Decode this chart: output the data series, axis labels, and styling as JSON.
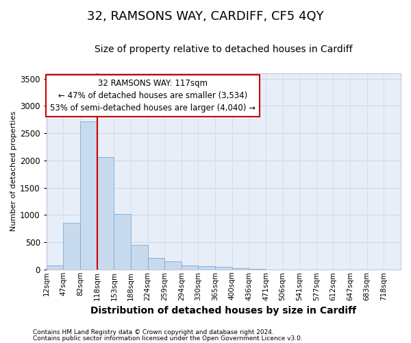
{
  "title": "32, RAMSONS WAY, CARDIFF, CF5 4QY",
  "subtitle": "Size of property relative to detached houses in Cardiff",
  "xlabel": "Distribution of detached houses by size in Cardiff",
  "ylabel": "Number of detached properties",
  "footnote1": "Contains HM Land Registry data © Crown copyright and database right 2024.",
  "footnote2": "Contains public sector information licensed under the Open Government Licence v3.0.",
  "annotation_line1": "32 RAMSONS WAY: 117sqm",
  "annotation_line2": "← 47% of detached houses are smaller (3,534)",
  "annotation_line3": "53% of semi-detached houses are larger (4,040) →",
  "bin_labels": [
    "12sqm",
    "47sqm",
    "82sqm",
    "118sqm",
    "153sqm",
    "188sqm",
    "224sqm",
    "259sqm",
    "294sqm",
    "330sqm",
    "365sqm",
    "400sqm",
    "436sqm",
    "471sqm",
    "506sqm",
    "541sqm",
    "577sqm",
    "612sqm",
    "647sqm",
    "683sqm",
    "718sqm"
  ],
  "bar_heights": [
    75,
    850,
    2720,
    2060,
    1010,
    455,
    215,
    145,
    75,
    55,
    45,
    28,
    8,
    3,
    2,
    1,
    0,
    0,
    0,
    0,
    0
  ],
  "bar_color": "#c8daee",
  "bar_edge_color": "#7aaad4",
  "vline_x": 3,
  "vline_color": "#cc0000",
  "ylim": [
    0,
    3600
  ],
  "yticks": [
    0,
    500,
    1000,
    1500,
    2000,
    2500,
    3000,
    3500
  ],
  "grid_color": "#cdd8e8",
  "background_color": "#e8eef8",
  "fig_background": "#ffffff",
  "annotation_box_facecolor": "#ffffff",
  "annotation_box_edgecolor": "#cc0000",
  "title_fontsize": 13,
  "subtitle_fontsize": 10,
  "xlabel_fontsize": 10,
  "ylabel_fontsize": 8,
  "tick_fontsize": 7.5,
  "ytick_fontsize": 8.5,
  "footnote_fontsize": 6.5,
  "annotation_fontsize": 8.5
}
